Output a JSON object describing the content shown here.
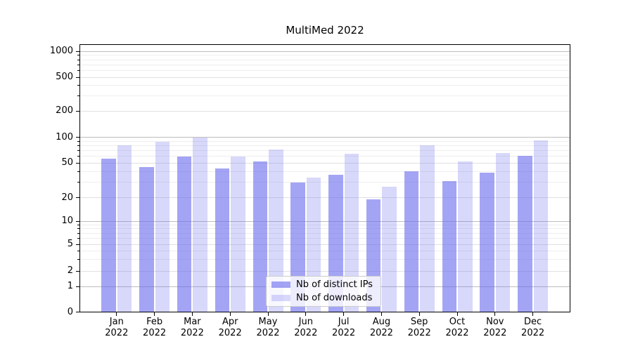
{
  "title": "MultiMed 2022",
  "chart_data": {
    "type": "bar",
    "title": "MultiMed 2022",
    "categories": [
      {
        "month": "Jan",
        "year": "2022"
      },
      {
        "month": "Feb",
        "year": "2022"
      },
      {
        "month": "Mar",
        "year": "2022"
      },
      {
        "month": "Apr",
        "year": "2022"
      },
      {
        "month": "May",
        "year": "2022"
      },
      {
        "month": "Jun",
        "year": "2022"
      },
      {
        "month": "Jul",
        "year": "2022"
      },
      {
        "month": "Aug",
        "year": "2022"
      },
      {
        "month": "Sep",
        "year": "2022"
      },
      {
        "month": "Oct",
        "year": "2022"
      },
      {
        "month": "Nov",
        "year": "2022"
      },
      {
        "month": "Dec",
        "year": "2022"
      }
    ],
    "series": [
      {
        "name": "Nb of distinct IPs",
        "color": "#6868ee",
        "alpha": 0.6,
        "values": [
          56,
          45,
          60,
          43,
          52,
          30,
          37,
          19,
          40,
          31,
          39,
          61
        ]
      },
      {
        "name": "Nb of downloads",
        "color": "#6868ee",
        "alpha": 0.26,
        "values": [
          80,
          88,
          100,
          60,
          72,
          34,
          64,
          27,
          81,
          52,
          65,
          92
        ]
      }
    ],
    "yticks": [
      0,
      1,
      2,
      5,
      10,
      20,
      50,
      100,
      200,
      500,
      1000
    ],
    "ylim": [
      0,
      1000
    ],
    "yscale": "symlog",
    "grid": true,
    "legend_position": "lower-center-inside"
  }
}
